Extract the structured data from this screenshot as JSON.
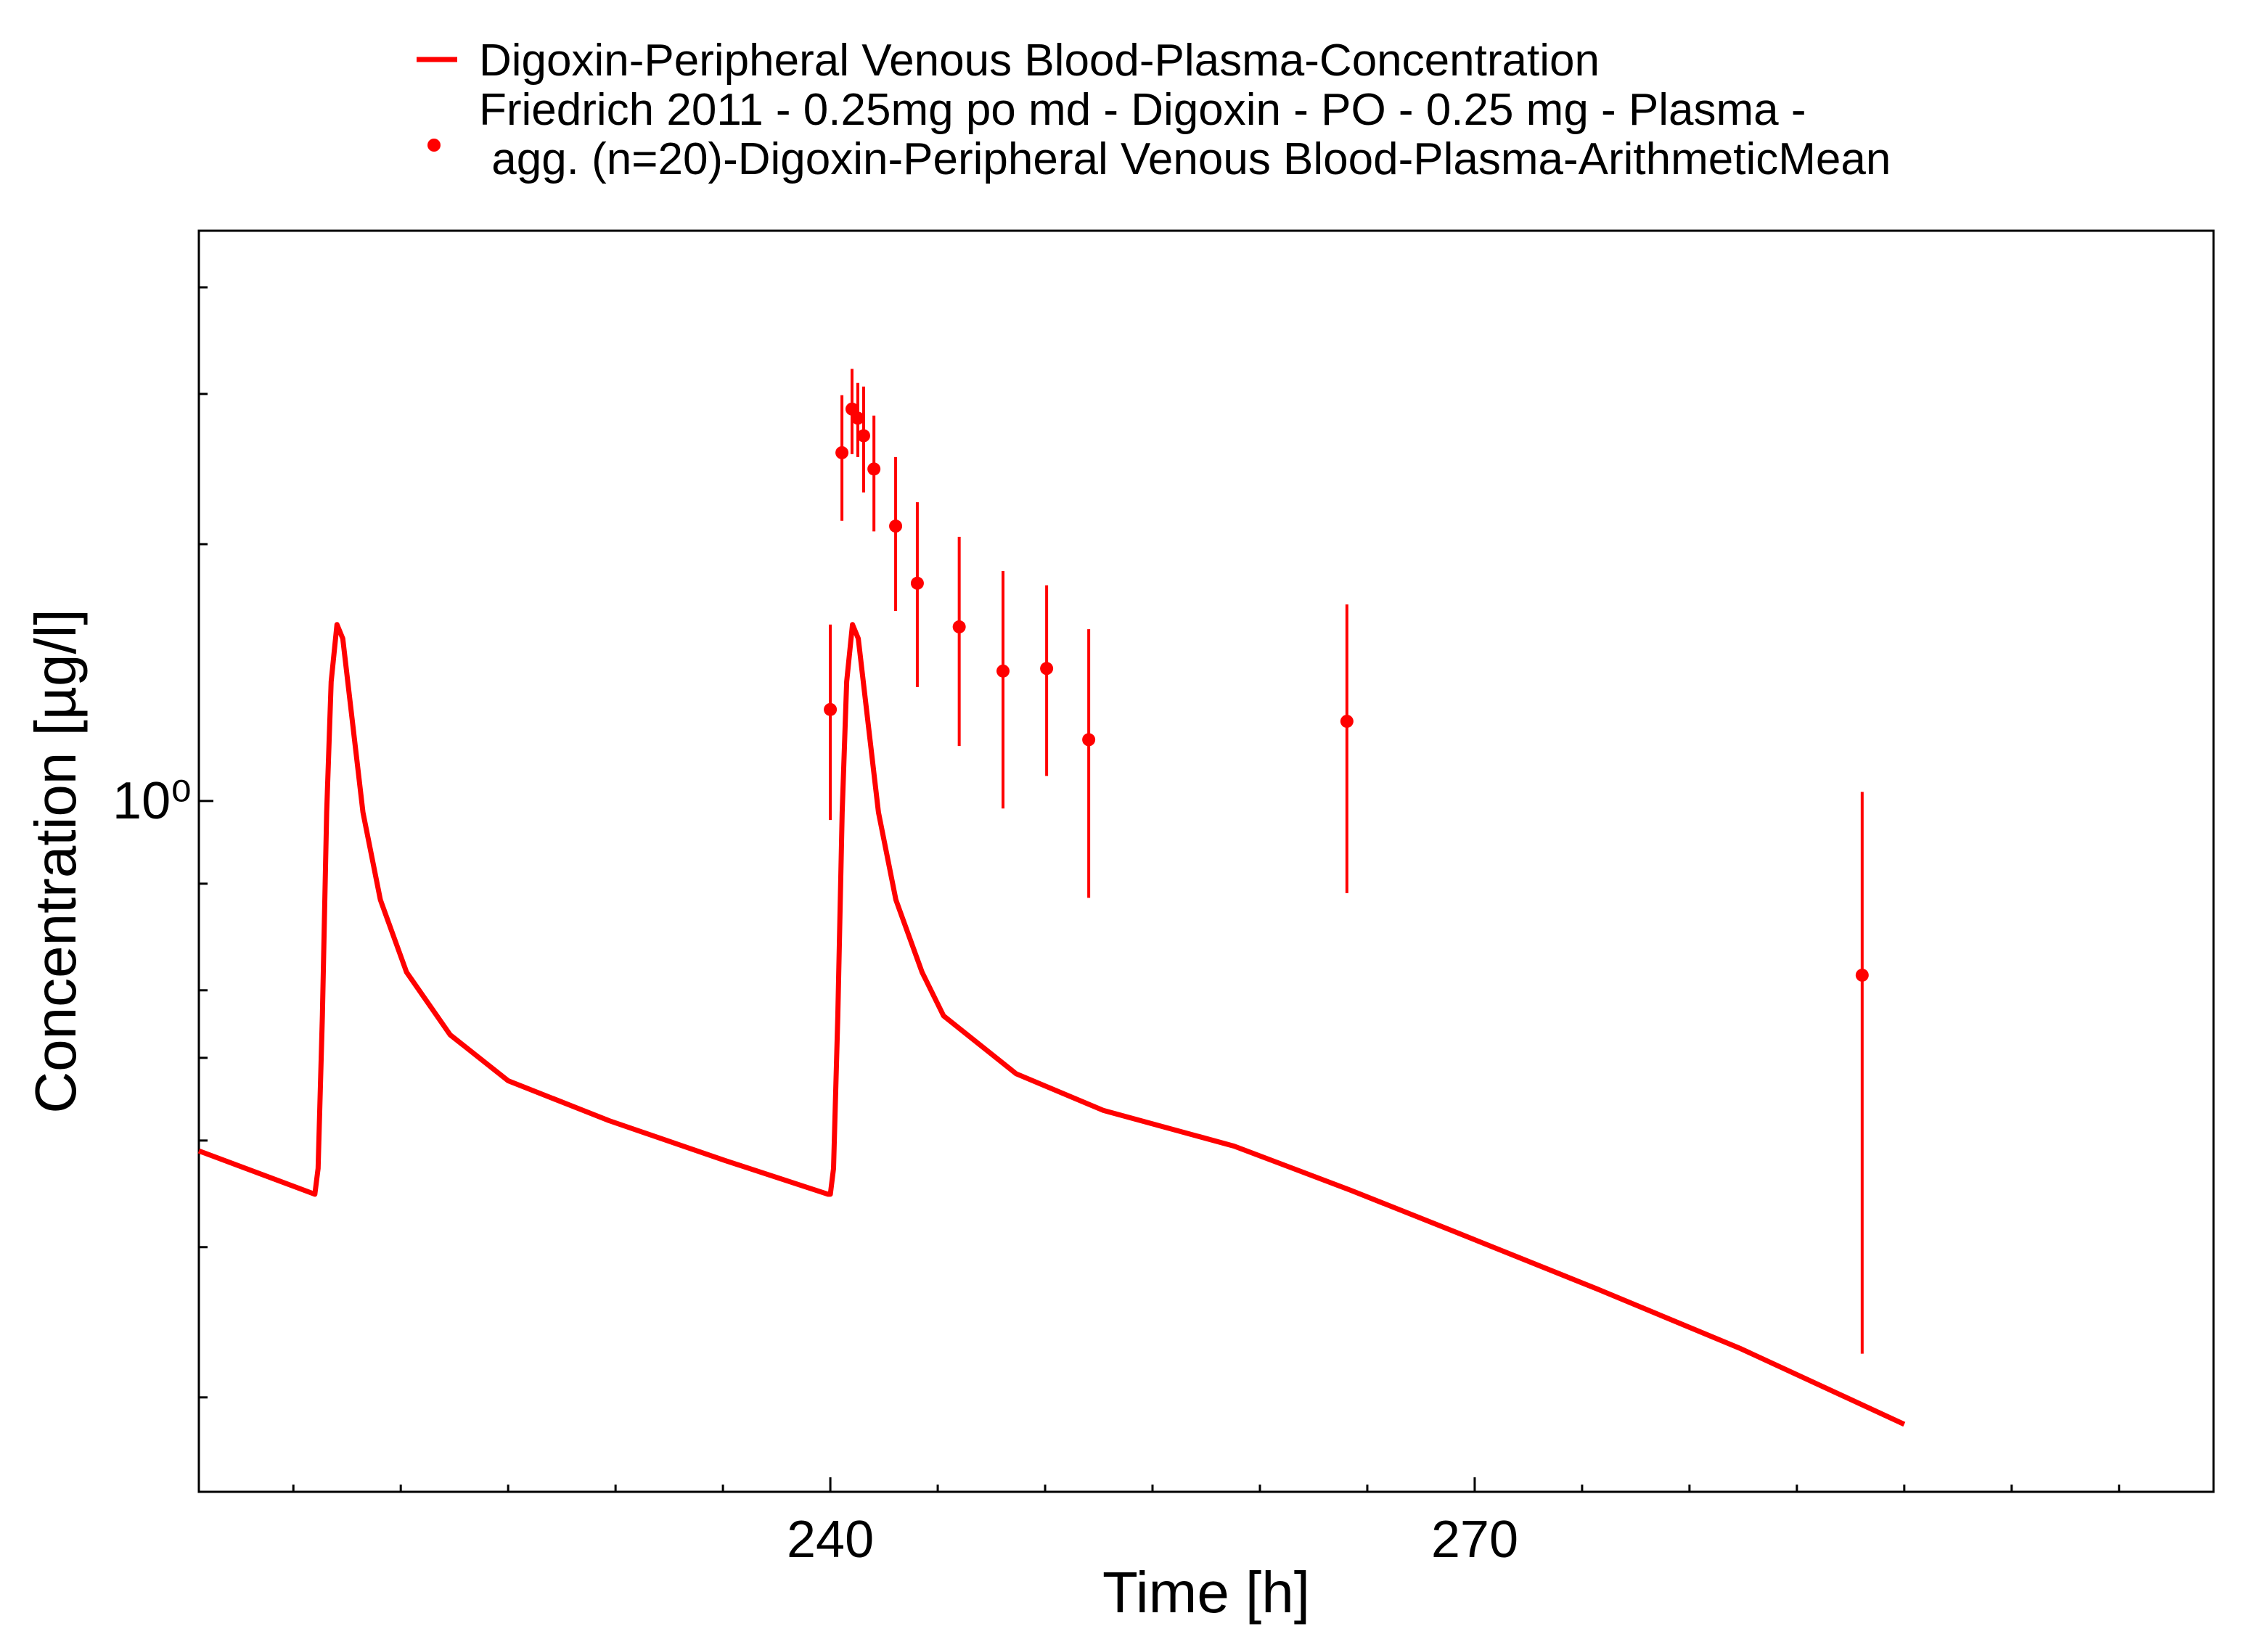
{
  "chart_data": {
    "type": "line",
    "xlabel": "Time [h]",
    "ylabel": "Concentration [µg/l]",
    "xlim": [
      210.6,
      304.4
    ],
    "xticks": [
      240,
      270
    ],
    "xminor_ticks": [
      215,
      220,
      225,
      230,
      235,
      245,
      250,
      255,
      260,
      265,
      275,
      280,
      285,
      290,
      295,
      300
    ],
    "ylim": [
      0.155,
      4.66
    ],
    "yscale": "log",
    "yticks": [
      {
        "value": 1,
        "label": "10⁰"
      }
    ],
    "yminor_ticks": [
      0.2,
      0.3,
      0.4,
      0.5,
      0.6,
      0.8,
      2,
      3,
      4
    ],
    "grid": false,
    "legend": "top",
    "series": [
      {
        "name": "Digoxin-Peripheral Venous Blood-Plasma-Concentration",
        "color": "#ff0000",
        "kind": "line",
        "x": [
          210.6,
          216.0,
          216.15,
          216.35,
          216.55,
          216.76,
          217.03,
          217.3,
          217.7,
          218.24,
          219.05,
          220.27,
          222.3,
          225.0,
          229.7,
          235.1,
          239.9,
          240.0,
          240.15,
          240.35,
          240.55,
          240.76,
          241.03,
          241.3,
          241.7,
          242.24,
          243.05,
          244.27,
          245.27,
          248.65,
          252.7,
          258.8,
          264.2,
          268.9,
          275.7,
          282.4,
          290.0
        ],
        "values": [
          0.389,
          0.346,
          0.371,
          0.56,
          0.97,
          1.38,
          1.61,
          1.55,
          1.27,
          0.97,
          0.766,
          0.63,
          0.532,
          0.47,
          0.422,
          0.379,
          0.346,
          0.346,
          0.371,
          0.56,
          0.97,
          1.38,
          1.61,
          1.55,
          1.27,
          0.97,
          0.766,
          0.63,
          0.56,
          0.479,
          0.434,
          0.394,
          0.35,
          0.314,
          0.268,
          0.228,
          0.186
        ]
      },
      {
        "name": "Friedrich 2011 - 0.25mg po md - Digoxin - PO - 0.25 mg - Plasma -\n agg. (n=20)-Digoxin-Peripheral Venous Blood-Plasma-ArithmeticMean",
        "color": "#ff0000",
        "kind": "errorbar",
        "x": [
          240.0,
          240.54,
          241.01,
          241.28,
          241.55,
          242.03,
          243.04,
          244.05,
          246.0,
          248.04,
          250.07,
          252.03,
          264.05,
          288.04
        ],
        "values": [
          1.28,
          2.56,
          2.88,
          2.81,
          2.68,
          2.45,
          2.1,
          1.8,
          1.6,
          1.42,
          1.43,
          1.18,
          1.24,
          0.625
        ],
        "errors": [
          0.33,
          0.43,
          0.33,
          0.28,
          0.38,
          0.38,
          0.43,
          0.44,
          0.44,
          0.44,
          0.36,
          0.41,
          0.46,
          0.4
        ]
      }
    ]
  }
}
